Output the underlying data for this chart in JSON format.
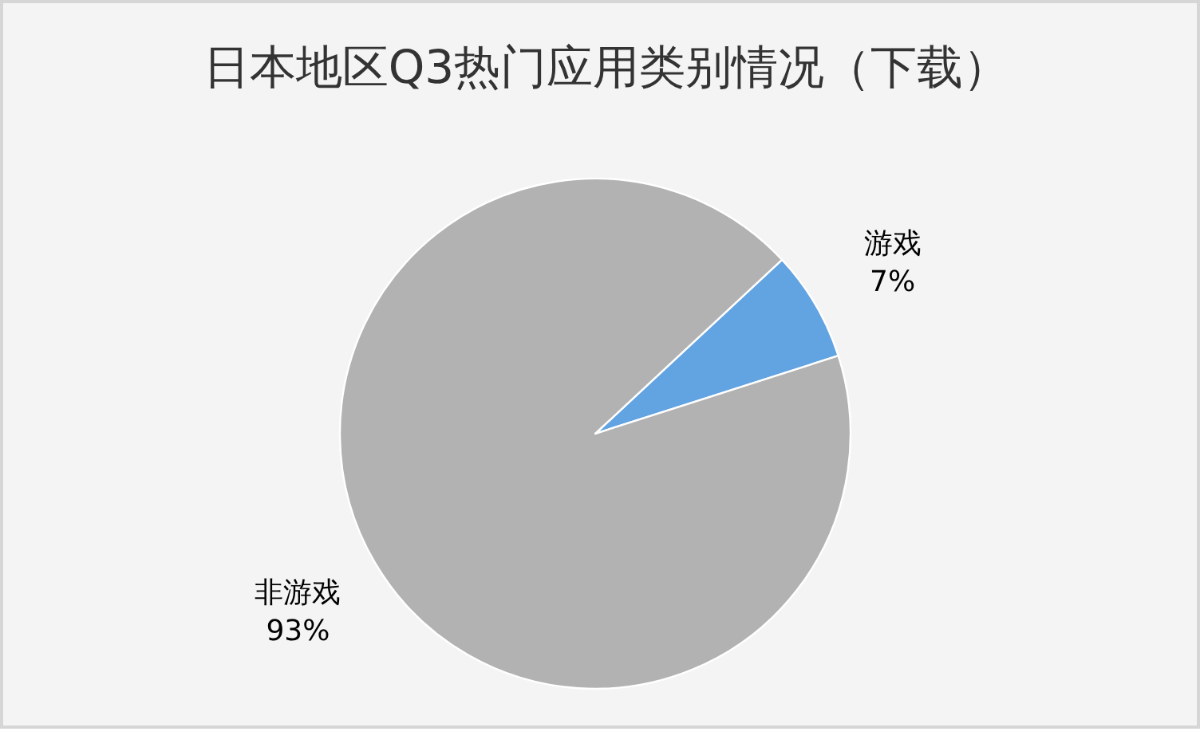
{
  "chart_data": {
    "type": "pie",
    "title": "日本地区Q3热门应用类别情况（下载）",
    "categories": [
      "游戏",
      "非游戏"
    ],
    "values": [
      7,
      93
    ],
    "value_labels": [
      "7%",
      "93%"
    ],
    "colors": [
      "#62a3e2",
      "#b2b2b2"
    ],
    "legend": false
  }
}
